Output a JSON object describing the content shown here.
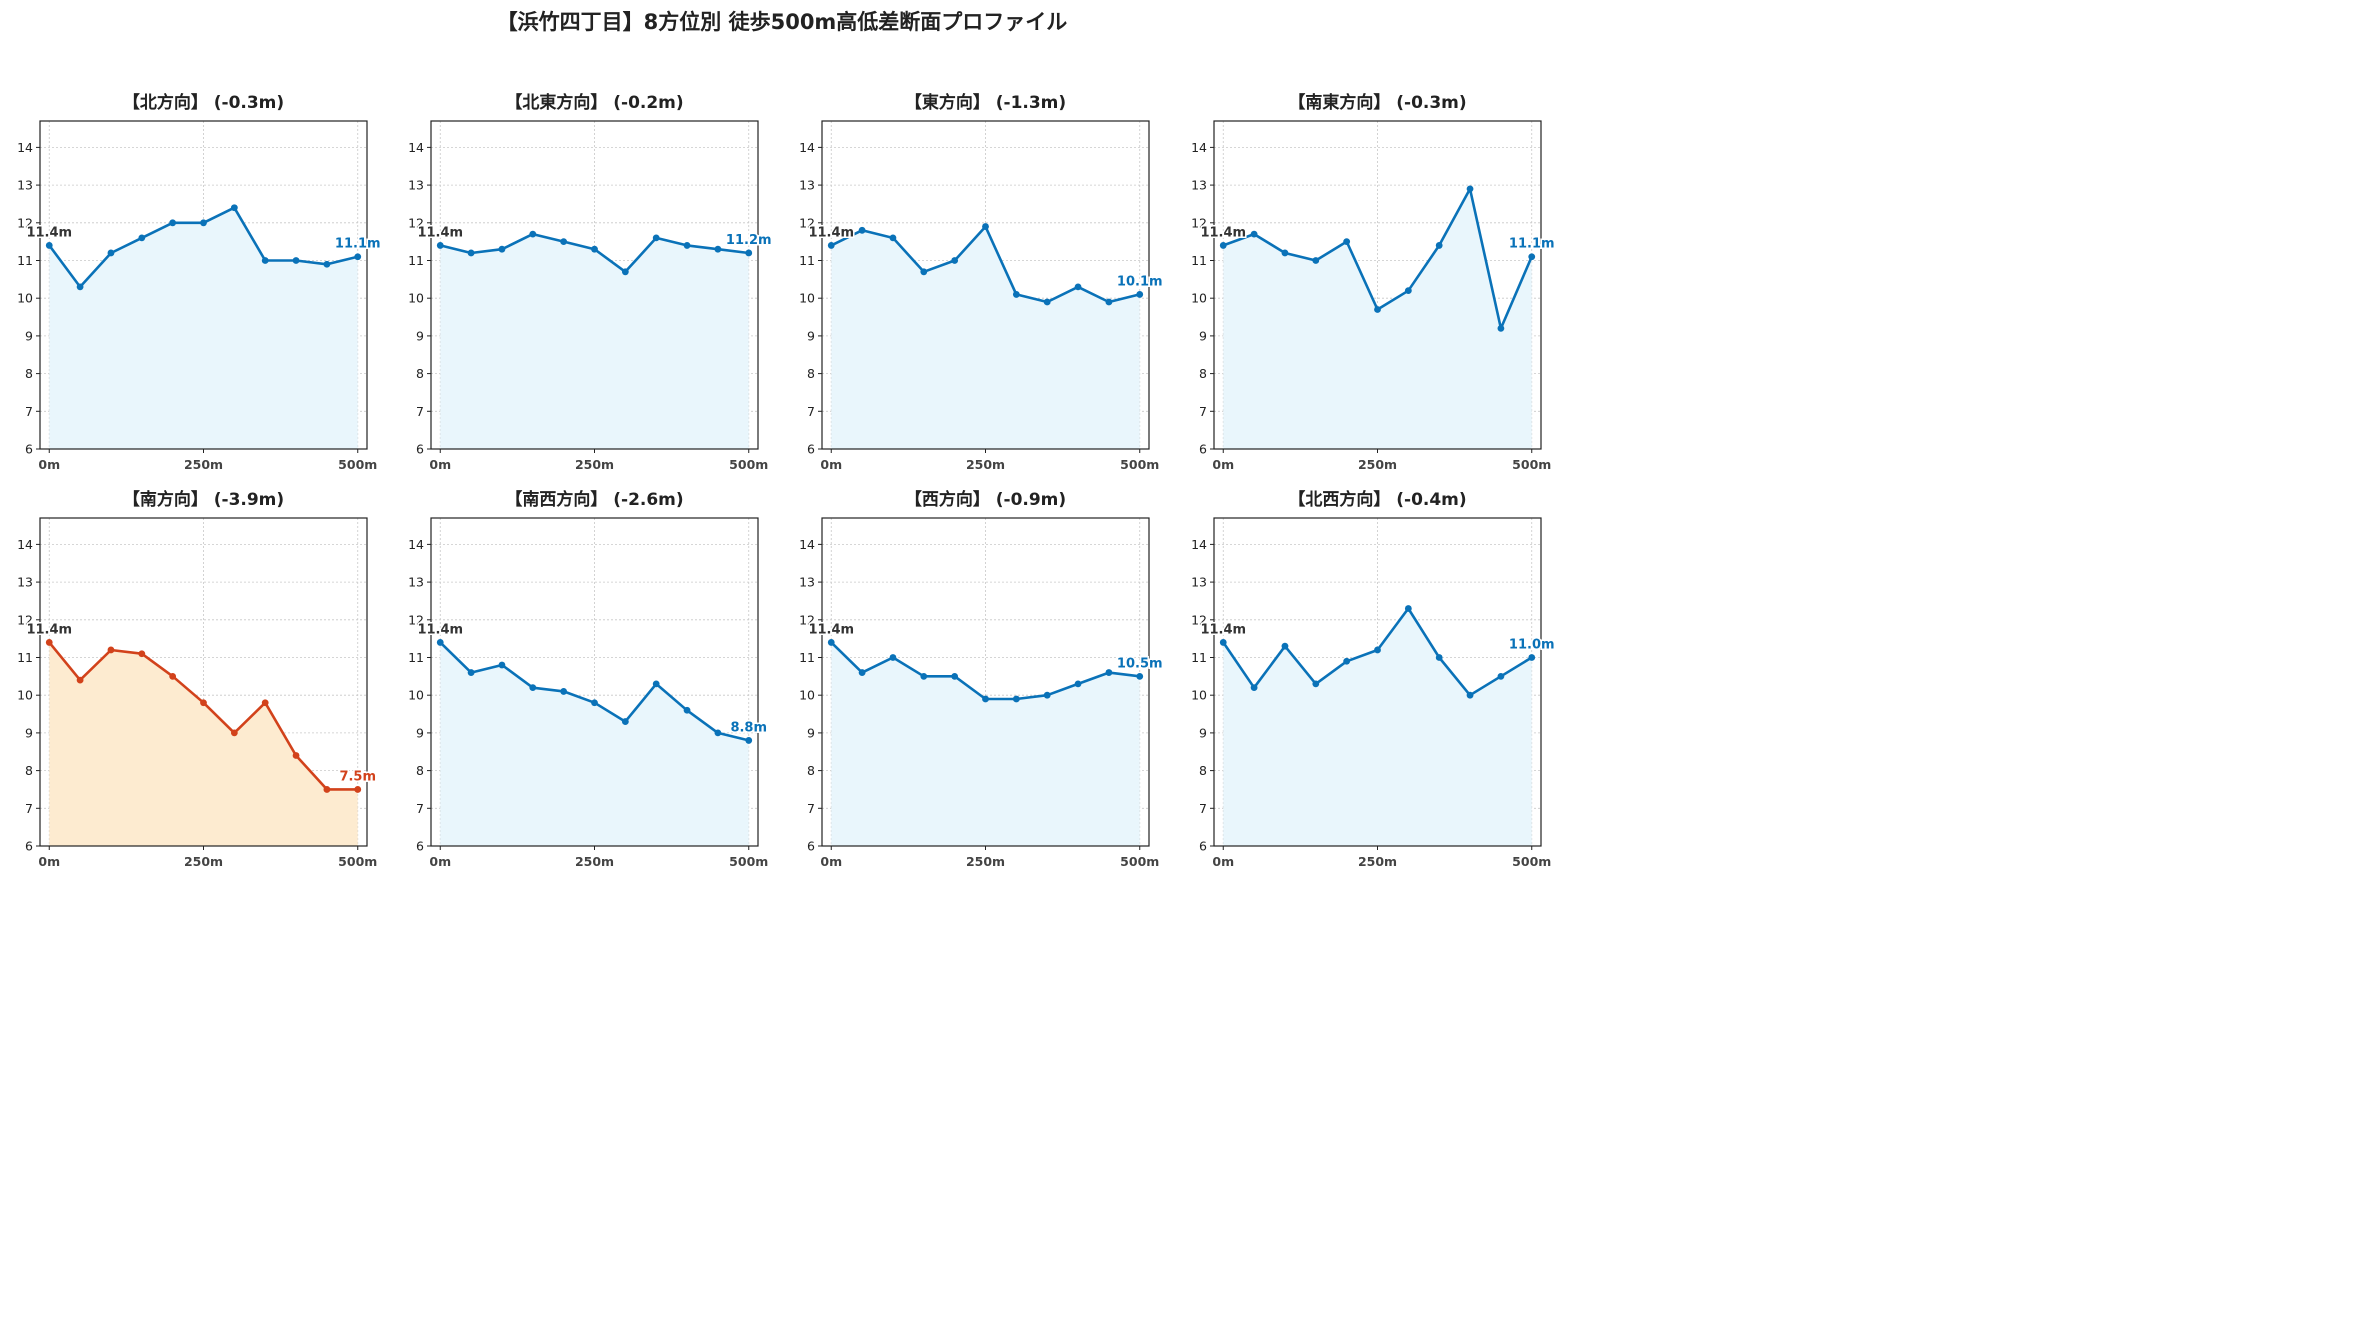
{
  "title": "【浜竹四丁目】8方位別 徒歩500m高低差断面プロファイル",
  "colors": {
    "normal_line": "#0a72b8",
    "normal_fill": "#e9f6fc",
    "highlight_line": "#d2421b",
    "highlight_fill": "#fdebd0",
    "grid": "#c8c8c8",
    "start_label": "#333333"
  },
  "chart_data": [
    {
      "type": "area",
      "title": "【北方向】 (-0.3m)",
      "x": [
        0,
        50,
        100,
        150,
        200,
        250,
        300,
        350,
        400,
        450,
        500
      ],
      "values": [
        11.4,
        10.3,
        11.2,
        11.6,
        12.0,
        12.0,
        12.4,
        11.0,
        11.0,
        10.9,
        11.1
      ],
      "start_label": "11.4m",
      "end_label": "11.1m",
      "highlight": false,
      "xticks": [
        "0m",
        "250m",
        "500m"
      ],
      "yticks": [
        6,
        7,
        8,
        9,
        10,
        11,
        12,
        13,
        14
      ],
      "ylim": [
        6,
        14.7
      ],
      "xlim": [
        -15,
        515
      ],
      "grid": true
    },
    {
      "type": "area",
      "title": "【北東方向】 (-0.2m)",
      "x": [
        0,
        50,
        100,
        150,
        200,
        250,
        300,
        350,
        400,
        450,
        500
      ],
      "values": [
        11.4,
        11.2,
        11.3,
        11.7,
        11.5,
        11.3,
        10.7,
        11.6,
        11.4,
        11.3,
        11.2
      ],
      "start_label": "11.4m",
      "end_label": "11.2m",
      "highlight": false,
      "xticks": [
        "0m",
        "250m",
        "500m"
      ],
      "yticks": [
        6,
        7,
        8,
        9,
        10,
        11,
        12,
        13,
        14
      ],
      "ylim": [
        6,
        14.7
      ],
      "xlim": [
        -15,
        515
      ],
      "grid": true
    },
    {
      "type": "area",
      "title": "【東方向】 (-1.3m)",
      "x": [
        0,
        50,
        100,
        150,
        200,
        250,
        300,
        350,
        400,
        450,
        500
      ],
      "values": [
        11.4,
        11.8,
        11.6,
        10.7,
        11.0,
        11.9,
        10.1,
        9.9,
        10.3,
        9.9,
        10.1
      ],
      "start_label": "11.4m",
      "end_label": "10.1m",
      "highlight": false,
      "xticks": [
        "0m",
        "250m",
        "500m"
      ],
      "yticks": [
        6,
        7,
        8,
        9,
        10,
        11,
        12,
        13,
        14
      ],
      "ylim": [
        6,
        14.7
      ],
      "xlim": [
        -15,
        515
      ],
      "grid": true
    },
    {
      "type": "area",
      "title": "【南東方向】 (-0.3m)",
      "x": [
        0,
        50,
        100,
        150,
        200,
        250,
        300,
        350,
        400,
        450,
        500
      ],
      "values": [
        11.4,
        11.7,
        11.2,
        11.0,
        11.5,
        9.7,
        10.2,
        11.4,
        12.9,
        9.2,
        11.1
      ],
      "start_label": "11.4m",
      "end_label": "11.1m",
      "highlight": false,
      "xticks": [
        "0m",
        "250m",
        "500m"
      ],
      "yticks": [
        6,
        7,
        8,
        9,
        10,
        11,
        12,
        13,
        14
      ],
      "ylim": [
        6,
        14.7
      ],
      "xlim": [
        -15,
        515
      ],
      "grid": true
    },
    {
      "type": "area",
      "title": "【南方向】 (-3.9m)",
      "x": [
        0,
        50,
        100,
        150,
        200,
        250,
        300,
        350,
        400,
        450,
        500
      ],
      "values": [
        11.4,
        10.4,
        11.2,
        11.1,
        10.5,
        9.8,
        9.0,
        9.8,
        8.4,
        7.5,
        7.5
      ],
      "start_label": "11.4m",
      "end_label": "7.5m",
      "highlight": true,
      "xticks": [
        "0m",
        "250m",
        "500m"
      ],
      "yticks": [
        6,
        7,
        8,
        9,
        10,
        11,
        12,
        13,
        14
      ],
      "ylim": [
        6,
        14.7
      ],
      "xlim": [
        -15,
        515
      ],
      "grid": true
    },
    {
      "type": "area",
      "title": "【南西方向】 (-2.6m)",
      "x": [
        0,
        50,
        100,
        150,
        200,
        250,
        300,
        350,
        400,
        450,
        500
      ],
      "values": [
        11.4,
        10.6,
        10.8,
        10.2,
        10.1,
        9.8,
        9.3,
        10.3,
        9.6,
        9.0,
        8.8
      ],
      "start_label": "11.4m",
      "end_label": "8.8m",
      "highlight": false,
      "xticks": [
        "0m",
        "250m",
        "500m"
      ],
      "yticks": [
        6,
        7,
        8,
        9,
        10,
        11,
        12,
        13,
        14
      ],
      "ylim": [
        6,
        14.7
      ],
      "xlim": [
        -15,
        515
      ],
      "grid": true
    },
    {
      "type": "area",
      "title": "【西方向】 (-0.9m)",
      "x": [
        0,
        50,
        100,
        150,
        200,
        250,
        300,
        350,
        400,
        450,
        500
      ],
      "values": [
        11.4,
        10.6,
        11.0,
        10.5,
        10.5,
        9.9,
        9.9,
        10.0,
        10.3,
        10.6,
        10.5
      ],
      "start_label": "11.4m",
      "end_label": "10.5m",
      "highlight": false,
      "xticks": [
        "0m",
        "250m",
        "500m"
      ],
      "yticks": [
        6,
        7,
        8,
        9,
        10,
        11,
        12,
        13,
        14
      ],
      "ylim": [
        6,
        14.7
      ],
      "xlim": [
        -15,
        515
      ],
      "grid": true
    },
    {
      "type": "area",
      "title": "【北西方向】 (-0.4m)",
      "x": [
        0,
        50,
        100,
        150,
        200,
        250,
        300,
        350,
        400,
        450,
        500
      ],
      "values": [
        11.4,
        10.2,
        11.3,
        10.3,
        10.9,
        11.2,
        12.3,
        11.0,
        10.0,
        10.5,
        11.0
      ],
      "start_label": "11.4m",
      "end_label": "11.0m",
      "highlight": false,
      "xticks": [
        "0m",
        "250m",
        "500m"
      ],
      "yticks": [
        6,
        7,
        8,
        9,
        10,
        11,
        12,
        13,
        14
      ],
      "ylim": [
        6,
        14.7
      ],
      "xlim": [
        -15,
        515
      ],
      "grid": true
    }
  ]
}
